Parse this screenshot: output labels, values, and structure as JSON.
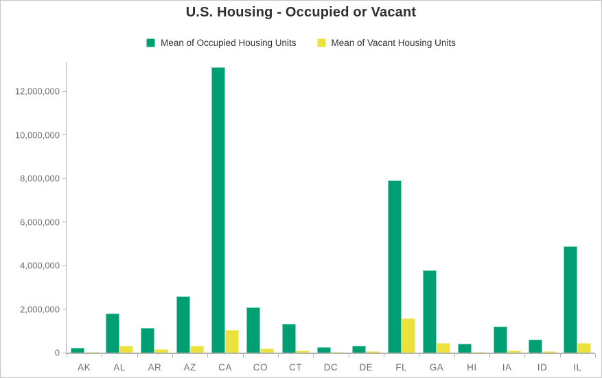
{
  "window": {
    "title": "U.S. Housing - Occupied or Vacant"
  },
  "legend": {
    "items": [
      {
        "label": "Mean of Occupied Housing Units",
        "color": "#009e73",
        "border": "#7fd2b4"
      },
      {
        "label": "Mean of Vacant Housing Units",
        "color": "#ece23d",
        "border": "#f4eda0"
      }
    ]
  },
  "chart_data": {
    "type": "bar",
    "title": "U.S. Housing - Occupied or Vacant",
    "categories": [
      "AK",
      "AL",
      "AR",
      "AZ",
      "CA",
      "CO",
      "CT",
      "DC",
      "DE",
      "FL",
      "GA",
      "HI",
      "IA",
      "ID",
      "IL"
    ],
    "series": [
      {
        "name": "Mean of Occupied Housing Units",
        "color": "#009e73",
        "border": "#7fd2b4",
        "values": [
          210000,
          1810000,
          1120000,
          2590000,
          13090000,
          2080000,
          1330000,
          255000,
          320000,
          7900000,
          3780000,
          400000,
          1210000,
          590000,
          4870000
        ]
      },
      {
        "name": "Mean of Vacant Housing Units",
        "color": "#ece23d",
        "border": "#f4eda0",
        "values": [
          45000,
          320000,
          150000,
          330000,
          1050000,
          175000,
          80000,
          25000,
          55000,
          1560000,
          440000,
          47000,
          95000,
          50000,
          450000
        ]
      }
    ],
    "xlabel": "",
    "ylabel": "",
    "ylim": [
      0,
      13260000
    ],
    "yticks": [
      0,
      2000000,
      4000000,
      6000000,
      8000000,
      10000000,
      12000000
    ],
    "grid": false,
    "legend_position": "top",
    "axis_color": "#b3b3b3",
    "tick_label_color": "#6e6e6e"
  }
}
